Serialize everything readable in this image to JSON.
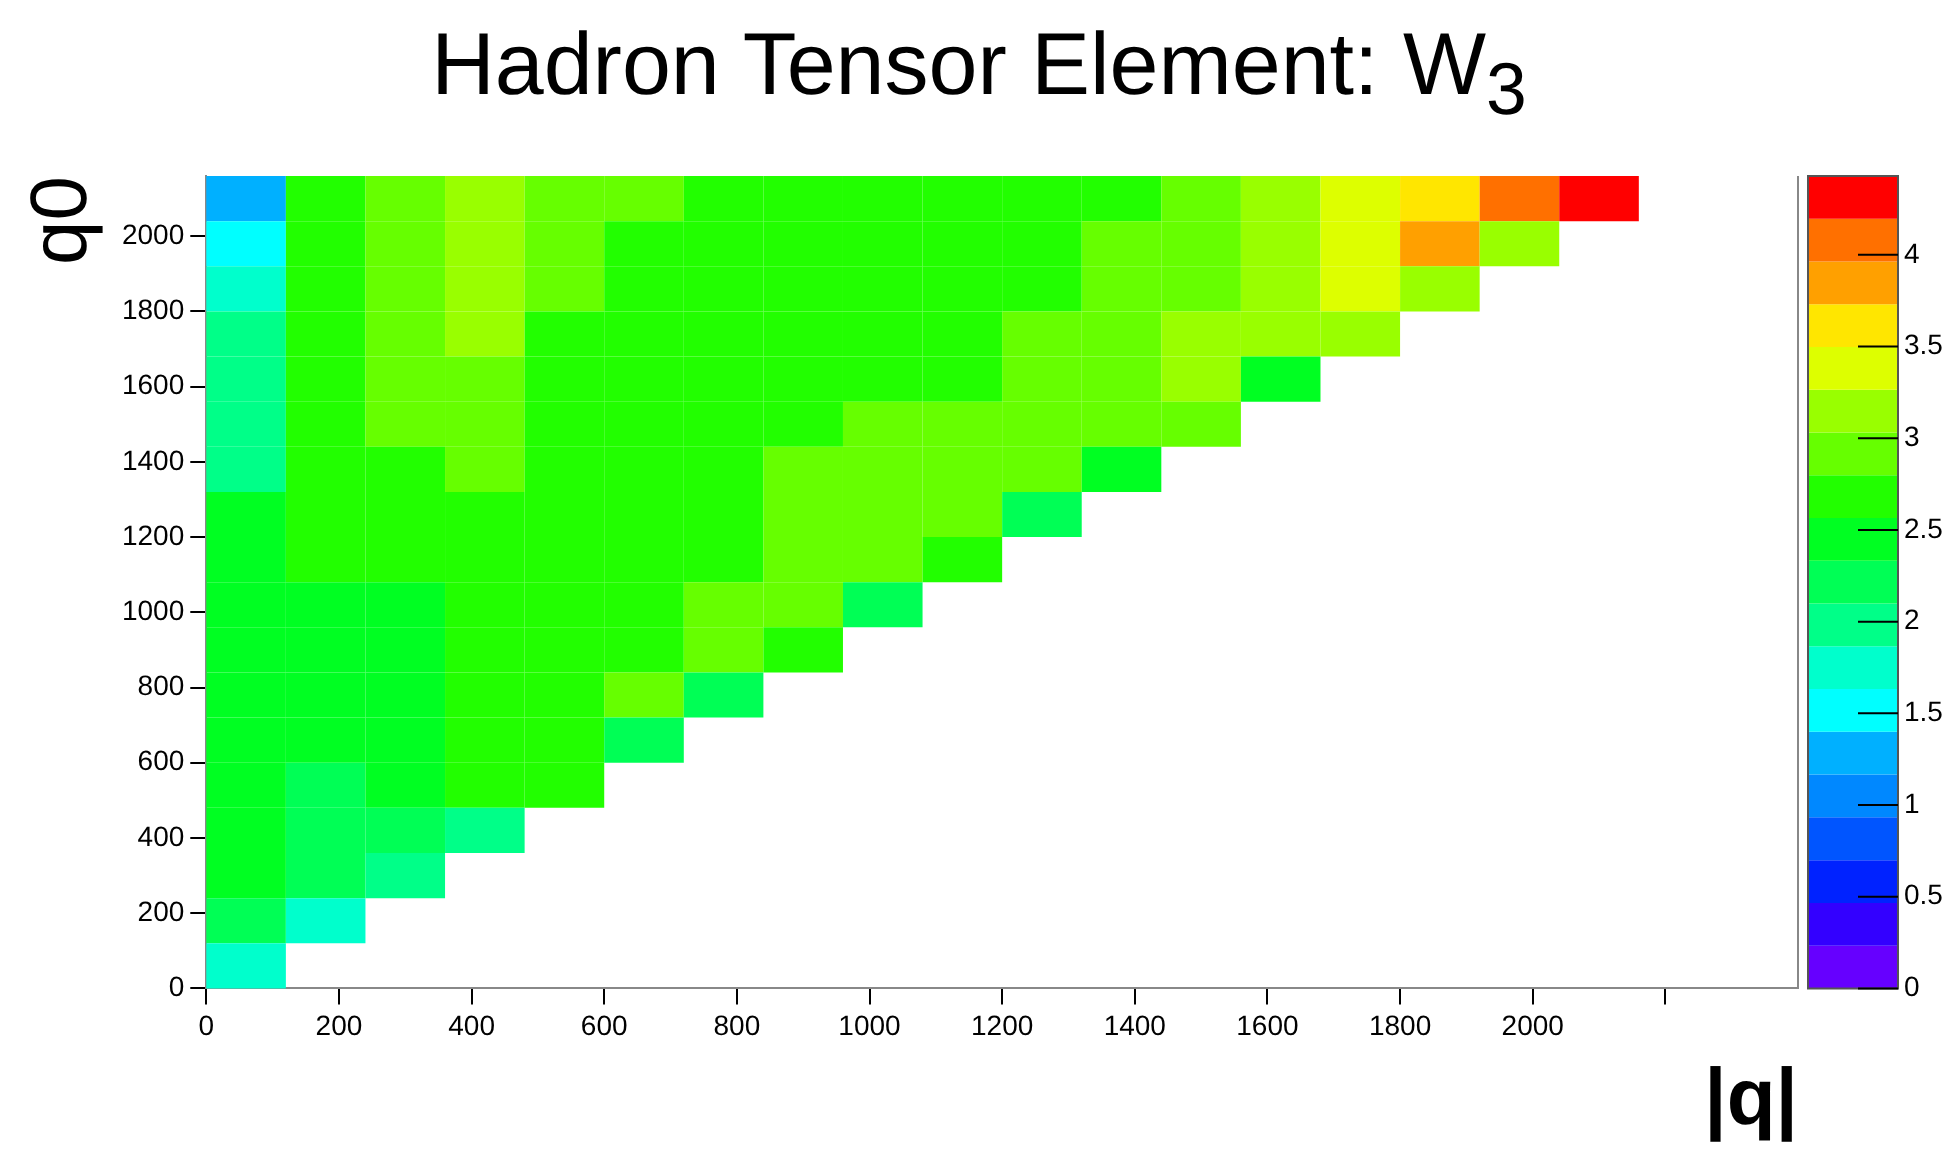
{
  "chart_data": {
    "type": "heatmap",
    "title": "Hadron Tensor Element: W$_{3}$",
    "xlabel": "|q|",
    "ylabel": "q0",
    "x": [
      60,
      180,
      300,
      420,
      540,
      660,
      780,
      900,
      1020,
      1140,
      1260,
      1380,
      1500,
      1620,
      1740,
      1860,
      1980,
      2100
    ],
    "y": [
      2100,
      1980,
      1860,
      1740,
      1620,
      1500,
      1380,
      1260,
      1140,
      1020,
      900,
      780,
      660,
      540,
      420,
      300,
      180,
      60
    ],
    "cells": [
      [
        1.25,
        2.65,
        2.9,
        3.1,
        2.9,
        2.9,
        2.65,
        2.65,
        2.65,
        2.65,
        2.65,
        2.65,
        2.9,
        3.1,
        3.35,
        3.6,
        4.07,
        4.3
      ],
      [
        1.5,
        2.65,
        2.9,
        3.1,
        2.9,
        2.65,
        2.65,
        2.65,
        2.65,
        2.65,
        2.65,
        2.9,
        2.9,
        3.1,
        3.35,
        3.83,
        3.1,
        null
      ],
      [
        1.75,
        2.65,
        2.9,
        3.1,
        2.9,
        2.65,
        2.65,
        2.65,
        2.65,
        2.65,
        2.65,
        2.9,
        2.9,
        3.1,
        3.35,
        3.1,
        null,
        null
      ],
      [
        1.95,
        2.65,
        2.9,
        3.1,
        2.65,
        2.65,
        2.65,
        2.65,
        2.65,
        2.65,
        2.9,
        2.9,
        3.1,
        3.1,
        3.1,
        null,
        null,
        null
      ],
      [
        1.95,
        2.65,
        2.9,
        2.9,
        2.65,
        2.65,
        2.65,
        2.65,
        2.65,
        2.65,
        2.9,
        2.9,
        3.1,
        2.45,
        null,
        null,
        null,
        null
      ],
      [
        1.95,
        2.65,
        2.9,
        2.9,
        2.65,
        2.65,
        2.65,
        2.65,
        2.9,
        2.9,
        2.9,
        2.9,
        2.9,
        null,
        null,
        null,
        null,
        null
      ],
      [
        1.95,
        2.65,
        2.65,
        2.9,
        2.65,
        2.65,
        2.65,
        2.9,
        2.9,
        2.9,
        2.9,
        2.45,
        null,
        null,
        null,
        null,
        null,
        null
      ],
      [
        2.45,
        2.65,
        2.65,
        2.65,
        2.65,
        2.65,
        2.65,
        2.9,
        2.9,
        2.9,
        2.2,
        null,
        null,
        null,
        null,
        null,
        null,
        null
      ],
      [
        2.45,
        2.65,
        2.65,
        2.65,
        2.65,
        2.65,
        2.65,
        2.9,
        2.9,
        2.65,
        null,
        null,
        null,
        null,
        null,
        null,
        null,
        null
      ],
      [
        2.45,
        2.45,
        2.45,
        2.65,
        2.65,
        2.65,
        2.9,
        2.9,
        2.2,
        null,
        null,
        null,
        null,
        null,
        null,
        null,
        null,
        null
      ],
      [
        2.45,
        2.45,
        2.45,
        2.65,
        2.65,
        2.65,
        2.9,
        2.65,
        null,
        null,
        null,
        null,
        null,
        null,
        null,
        null,
        null,
        null
      ],
      [
        2.45,
        2.45,
        2.45,
        2.65,
        2.65,
        2.9,
        2.2,
        null,
        null,
        null,
        null,
        null,
        null,
        null,
        null,
        null,
        null,
        null
      ],
      [
        2.45,
        2.45,
        2.45,
        2.65,
        2.65,
        2.2,
        null,
        null,
        null,
        null,
        null,
        null,
        null,
        null,
        null,
        null,
        null,
        null
      ],
      [
        2.45,
        2.2,
        2.45,
        2.65,
        2.65,
        null,
        null,
        null,
        null,
        null,
        null,
        null,
        null,
        null,
        null,
        null,
        null,
        null
      ],
      [
        2.45,
        2.2,
        2.2,
        1.95,
        null,
        null,
        null,
        null,
        null,
        null,
        null,
        null,
        null,
        null,
        null,
        null,
        null,
        null
      ],
      [
        2.45,
        2.2,
        1.95,
        null,
        null,
        null,
        null,
        null,
        null,
        null,
        null,
        null,
        null,
        null,
        null,
        null,
        null,
        null
      ],
      [
        2.2,
        1.75,
        null,
        null,
        null,
        null,
        null,
        null,
        null,
        null,
        null,
        null,
        null,
        null,
        null,
        null,
        null,
        null
      ],
      [
        1.75,
        null,
        null,
        null,
        null,
        null,
        null,
        null,
        null,
        null,
        null,
        null,
        null,
        null,
        null,
        null,
        null,
        null
      ]
    ],
    "xlim": [
      0,
      2400
    ],
    "xticks": [
      0,
      200,
      400,
      600,
      800,
      1000,
      1200,
      1400,
      1600,
      1800,
      2000,
      {
        "value": 2200,
        "label": null
      }
    ],
    "ylim": [
      0,
      2160
    ],
    "yticks": [
      0,
      200,
      400,
      600,
      800,
      1000,
      1200,
      1400,
      1600,
      1800,
      2000
    ],
    "clim": [
      0,
      4.43
    ],
    "cticks": [
      0,
      0.5,
      1,
      1.5,
      2,
      2.5,
      3,
      3.5,
      4
    ]
  }
}
